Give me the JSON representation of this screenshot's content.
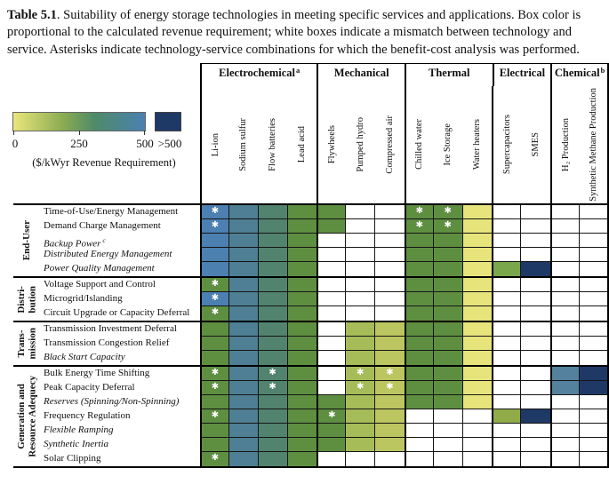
{
  "caption": {
    "label": "Table 5.1",
    "text": ". Suitability of energy storage technologies in meeting specific services and applications. Box color is proportional to the calculated revenue requirement; white boxes indicate a mismatch between technology and service. Asterisks indicate technology-service combinations for which the benefit-cost analysis was performed."
  },
  "legend": {
    "tick_0": "0",
    "tick_250": "250",
    "tick_500": "500",
    "over_label": ">500",
    "caption": "($/kWyr Revenue Requirement)",
    "gradient": [
      "#e9e67b",
      "#8aab52",
      "#4f8a68",
      "#4b80b2"
    ],
    "over_color": "#1f3966"
  },
  "tech_groups": [
    {
      "label": "Electrochemical",
      "sup": "a",
      "span": 4
    },
    {
      "label": "Mechanical",
      "sup": "",
      "span": 3
    },
    {
      "label": "Thermal",
      "sup": "",
      "span": 3
    },
    {
      "label": "Electrical",
      "sup": "",
      "span": 2
    },
    {
      "label": "Chemical",
      "sup": "b",
      "span": 2
    }
  ],
  "technologies": [
    "Li-ion",
    "Sodium sulfur",
    "Flow batteries",
    "Lead acid",
    "Flywheels",
    "Pumped hydro",
    "Compressed air",
    "Chilled water",
    "Ice Storage",
    "Water heaters",
    "Supercapacitors",
    "SMES",
    "H₂ Production",
    "Synthetic Methane Production"
  ],
  "palette": {
    "B": "#4b80b1",
    "T": "#4e7f94",
    "TG": "#52836f",
    "G": "#5e8f41",
    "GL": "#7aa74b",
    "LG": "#a6bc59",
    "YG": "#bcc660",
    "Y": "#e7e47b",
    "SG": "#92ab49",
    "SB": "#54819d",
    "N": "#1f3966"
  },
  "asterisk_glyph": "✱",
  "service_groups": [
    {
      "label_lines": [
        "End-User"
      ],
      "rows": [
        {
          "label": "Time-of-Use/Energy Management",
          "italic": false,
          "cells": [
            "B*",
            "T",
            "TG",
            "G",
            "G",
            "",
            "",
            "G*",
            "G*",
            "Y",
            "",
            "",
            "",
            ""
          ]
        },
        {
          "label": "Demand Charge Management",
          "italic": false,
          "cells": [
            "B*",
            "T",
            "TG",
            "G",
            "G",
            "",
            "",
            "G*",
            "G*",
            "Y",
            "",
            "",
            "",
            ""
          ]
        },
        {
          "label": "Backup Power",
          "sup": "c",
          "italic": true,
          "cells": [
            "B",
            "T",
            "TG",
            "G",
            "",
            "",
            "",
            "G",
            "G",
            "Y",
            "",
            "",
            "",
            ""
          ]
        },
        {
          "label": "Distributed Energy Management",
          "italic": true,
          "cells": [
            "B",
            "T",
            "TG",
            "G",
            "",
            "",
            "",
            "G",
            "G",
            "Y",
            "",
            "",
            "",
            ""
          ]
        },
        {
          "label": "Power Quality Management",
          "italic": true,
          "cells": [
            "B",
            "T",
            "TG",
            "G",
            "",
            "",
            "",
            "G",
            "G",
            "Y",
            "GL",
            "N",
            "",
            ""
          ]
        }
      ]
    },
    {
      "label_lines": [
        "Distri-",
        "bution"
      ],
      "rows": [
        {
          "label": "Voltage Support and Control",
          "italic": false,
          "cells": [
            "G*",
            "T",
            "TG",
            "G",
            "",
            "",
            "",
            "G",
            "G",
            "Y",
            "",
            "",
            "",
            ""
          ]
        },
        {
          "label": "Microgrid/Islanding",
          "italic": false,
          "cells": [
            "B*",
            "T",
            "TG",
            "G",
            "",
            "",
            "",
            "G",
            "G",
            "Y",
            "",
            "",
            "",
            ""
          ]
        },
        {
          "label": "Circuit Upgrade or Capacity Deferral",
          "italic": false,
          "cells": [
            "G*",
            "T",
            "TG",
            "G",
            "",
            "",
            "",
            "G",
            "G",
            "Y",
            "",
            "",
            "",
            ""
          ]
        }
      ]
    },
    {
      "label_lines": [
        "Trans-",
        "mission"
      ],
      "rows": [
        {
          "label": "Transmission Investment Deferral",
          "italic": false,
          "cells": [
            "G",
            "T",
            "TG",
            "G",
            "",
            "LG",
            "YG",
            "G",
            "G",
            "Y",
            "",
            "",
            "",
            ""
          ]
        },
        {
          "label": "Transmission Congestion Relief",
          "italic": false,
          "cells": [
            "G",
            "T",
            "TG",
            "G",
            "",
            "LG",
            "YG",
            "G",
            "G",
            "Y",
            "",
            "",
            "",
            ""
          ]
        },
        {
          "label": "Black Start Capacity",
          "italic": true,
          "cells": [
            "G",
            "T",
            "TG",
            "G",
            "",
            "LG",
            "YG",
            "G",
            "G",
            "Y",
            "",
            "",
            "",
            ""
          ]
        }
      ]
    },
    {
      "label_lines": [
        "Generation and",
        "Resource Adequecy"
      ],
      "rows": [
        {
          "label": "Bulk Energy Time Shifting",
          "italic": false,
          "cells": [
            "G*",
            "T",
            "TG*",
            "G",
            "",
            "LG*",
            "YG*",
            "G",
            "G",
            "Y",
            "",
            "",
            "SB",
            "N"
          ]
        },
        {
          "label": "Peak Capacity Deferral",
          "italic": false,
          "cells": [
            "G*",
            "T",
            "TG*",
            "G",
            "",
            "LG*",
            "YG*",
            "G",
            "G",
            "Y",
            "",
            "",
            "SB",
            "N"
          ]
        },
        {
          "label": "Reserves (Spinning/Non-Spinning)",
          "italic": true,
          "cells": [
            "G",
            "T",
            "TG",
            "G",
            "G",
            "LG",
            "YG",
            "G",
            "G",
            "Y",
            "",
            "",
            "",
            ""
          ]
        },
        {
          "label": "Frequency Regulation",
          "italic": false,
          "cells": [
            "G*",
            "T",
            "TG",
            "G",
            "G*",
            "LG",
            "YG",
            "",
            "",
            "",
            "SG",
            "N",
            "",
            ""
          ]
        },
        {
          "label": "Flexible Ramping",
          "italic": true,
          "cells": [
            "G",
            "T",
            "TG",
            "G",
            "G",
            "LG",
            "YG",
            "",
            "",
            "",
            "",
            "",
            "",
            ""
          ]
        },
        {
          "label": "Synthetic Inertia",
          "italic": true,
          "cells": [
            "G",
            "T",
            "TG",
            "G",
            "G",
            "LG",
            "YG",
            "",
            "",
            "",
            "",
            "",
            "",
            ""
          ]
        },
        {
          "label": "Solar Clipping",
          "italic": false,
          "cells": [
            "G*",
            "T",
            "TG",
            "G",
            "",
            "",
            "",
            "",
            "",
            "",
            "",
            "",
            "",
            ""
          ]
        }
      ]
    }
  ]
}
